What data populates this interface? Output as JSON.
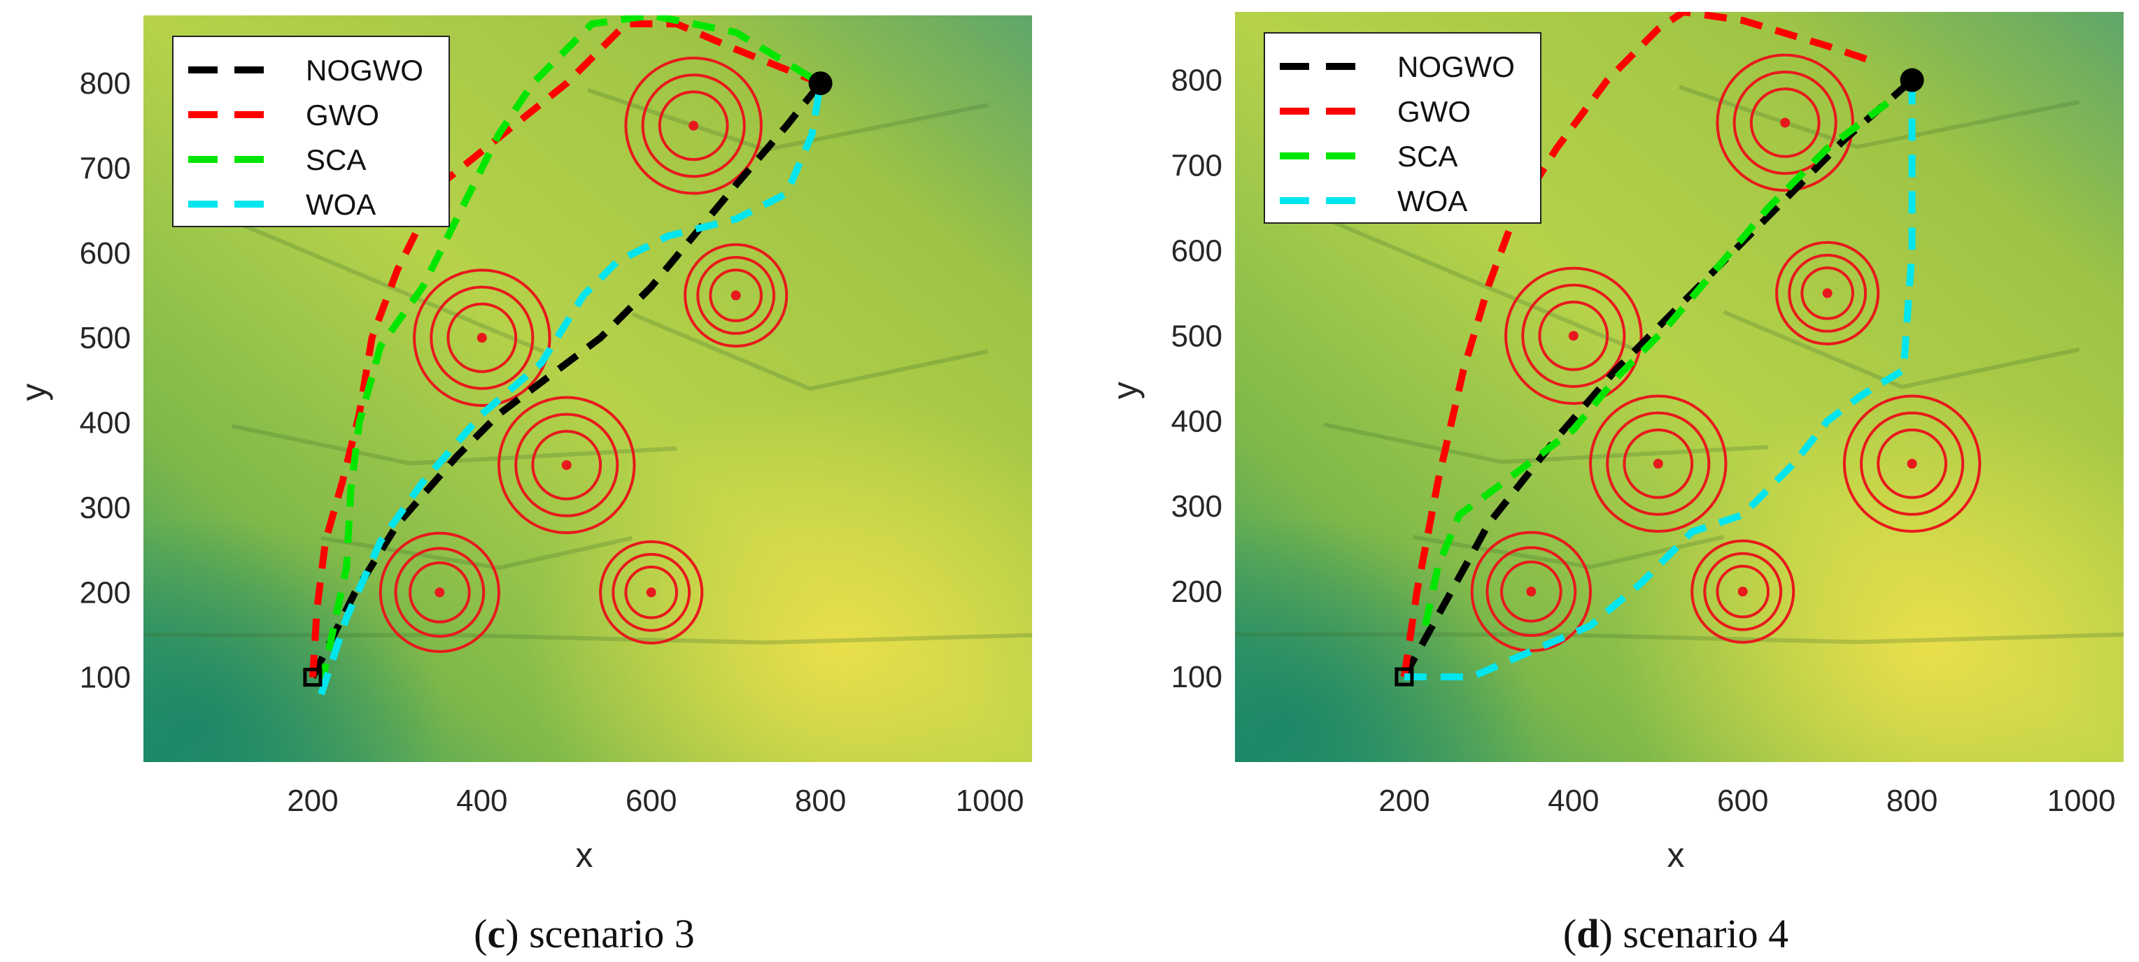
{
  "chart_data": [
    {
      "type": "line",
      "panel_letter": "c",
      "caption_text": " scenario 3",
      "xlabel": "x",
      "ylabel": "y",
      "xlim": [
        0,
        1050
      ],
      "ylim": [
        0,
        880
      ],
      "xticks": [
        200,
        400,
        600,
        800,
        1000
      ],
      "yticks": [
        100,
        200,
        300,
        400,
        500,
        600,
        700,
        800
      ],
      "legend_position": "top-left",
      "background": "terrain shaded relief, green to yellow",
      "start": [
        200,
        100
      ],
      "goal": [
        800,
        800
      ],
      "threats": [
        {
          "x": 650,
          "y": 750,
          "radii": [
            40,
            60,
            80
          ]
        },
        {
          "x": 700,
          "y": 550,
          "radii": [
            30,
            45,
            60
          ]
        },
        {
          "x": 400,
          "y": 500,
          "radii": [
            40,
            60,
            80
          ]
        },
        {
          "x": 500,
          "y": 350,
          "radii": [
            40,
            60,
            80
          ]
        },
        {
          "x": 350,
          "y": 200,
          "radii": [
            35,
            52,
            70
          ]
        },
        {
          "x": 600,
          "y": 200,
          "radii": [
            30,
            45,
            60
          ]
        }
      ],
      "series": [
        {
          "name": "NOGWO",
          "color": "#000000",
          "x": [
            200,
            250,
            300,
            370,
            420,
            500,
            540,
            600,
            650,
            700,
            760,
            800
          ],
          "y": [
            100,
            200,
            280,
            360,
            410,
            470,
            500,
            560,
            620,
            680,
            750,
            800
          ]
        },
        {
          "name": "GWO",
          "color": "#ff0000",
          "x": [
            200,
            205,
            215,
            235,
            255,
            270,
            300,
            350,
            400,
            450,
            500,
            570,
            630,
            700,
            800
          ],
          "y": [
            100,
            180,
            260,
            330,
            410,
            500,
            580,
            680,
            720,
            760,
            800,
            870,
            870,
            840,
            800
          ]
        },
        {
          "name": "SCA",
          "color": "#00e600",
          "x": [
            210,
            225,
            240,
            245,
            255,
            280,
            330,
            380,
            420,
            460,
            530,
            600,
            700,
            800
          ],
          "y": [
            90,
            160,
            230,
            320,
            400,
            490,
            560,
            660,
            740,
            800,
            870,
            880,
            860,
            800
          ]
        },
        {
          "name": "WOA",
          "color": "#00e5ee",
          "x": [
            210,
            240,
            280,
            330,
            400,
            470,
            520,
            560,
            620,
            700,
            760,
            790,
            800
          ],
          "y": [
            80,
            170,
            260,
            330,
            410,
            470,
            550,
            590,
            620,
            640,
            670,
            740,
            800
          ]
        }
      ]
    },
    {
      "type": "line",
      "panel_letter": "d",
      "caption_text": " scenario 4",
      "xlabel": "x",
      "ylabel": "y",
      "xlim": [
        0,
        1050
      ],
      "ylim": [
        0,
        880
      ],
      "xticks": [
        200,
        400,
        600,
        800,
        1000
      ],
      "yticks": [
        100,
        200,
        300,
        400,
        500,
        600,
        700,
        800
      ],
      "legend_position": "top-left",
      "background": "terrain shaded relief, green to yellow",
      "start": [
        200,
        100
      ],
      "goal": [
        800,
        800
      ],
      "threats": [
        {
          "x": 650,
          "y": 750,
          "radii": [
            40,
            60,
            80
          ]
        },
        {
          "x": 700,
          "y": 550,
          "radii": [
            30,
            45,
            60
          ]
        },
        {
          "x": 400,
          "y": 500,
          "radii": [
            40,
            60,
            80
          ]
        },
        {
          "x": 500,
          "y": 350,
          "radii": [
            40,
            60,
            80
          ]
        },
        {
          "x": 800,
          "y": 350,
          "radii": [
            40,
            60,
            80
          ]
        },
        {
          "x": 350,
          "y": 200,
          "radii": [
            35,
            52,
            70
          ]
        },
        {
          "x": 600,
          "y": 200,
          "radii": [
            30,
            45,
            60
          ]
        }
      ],
      "series": [
        {
          "name": "NOGWO",
          "color": "#000000",
          "x": [
            200,
            250,
            300,
            380,
            450,
            520,
            580,
            650,
            720,
            800
          ],
          "y": [
            100,
            190,
            280,
            380,
            460,
            530,
            590,
            660,
            730,
            800
          ]
        },
        {
          "name": "GWO",
          "color": "#ff0000",
          "x": [
            200,
            215,
            240,
            270,
            300,
            330,
            380,
            440,
            500,
            530,
            600,
            700,
            760
          ],
          "y": [
            100,
            200,
            330,
            460,
            560,
            640,
            720,
            800,
            860,
            880,
            870,
            840,
            820
          ]
        },
        {
          "name": "SCA",
          "color": "#00e600",
          "x": [
            225,
            240,
            265,
            320,
            400,
            450,
            510,
            570,
            630,
            700,
            780
          ],
          "y": [
            160,
            230,
            290,
            330,
            390,
            450,
            510,
            580,
            650,
            720,
            780
          ]
        },
        {
          "name": "WOA",
          "color": "#00e5ee",
          "x": [
            200,
            280,
            350,
            420,
            480,
            540,
            600,
            660,
            700,
            740,
            790,
            800,
            800
          ],
          "y": [
            100,
            100,
            130,
            160,
            210,
            270,
            290,
            350,
            400,
            430,
            460,
            600,
            790
          ]
        }
      ]
    }
  ]
}
